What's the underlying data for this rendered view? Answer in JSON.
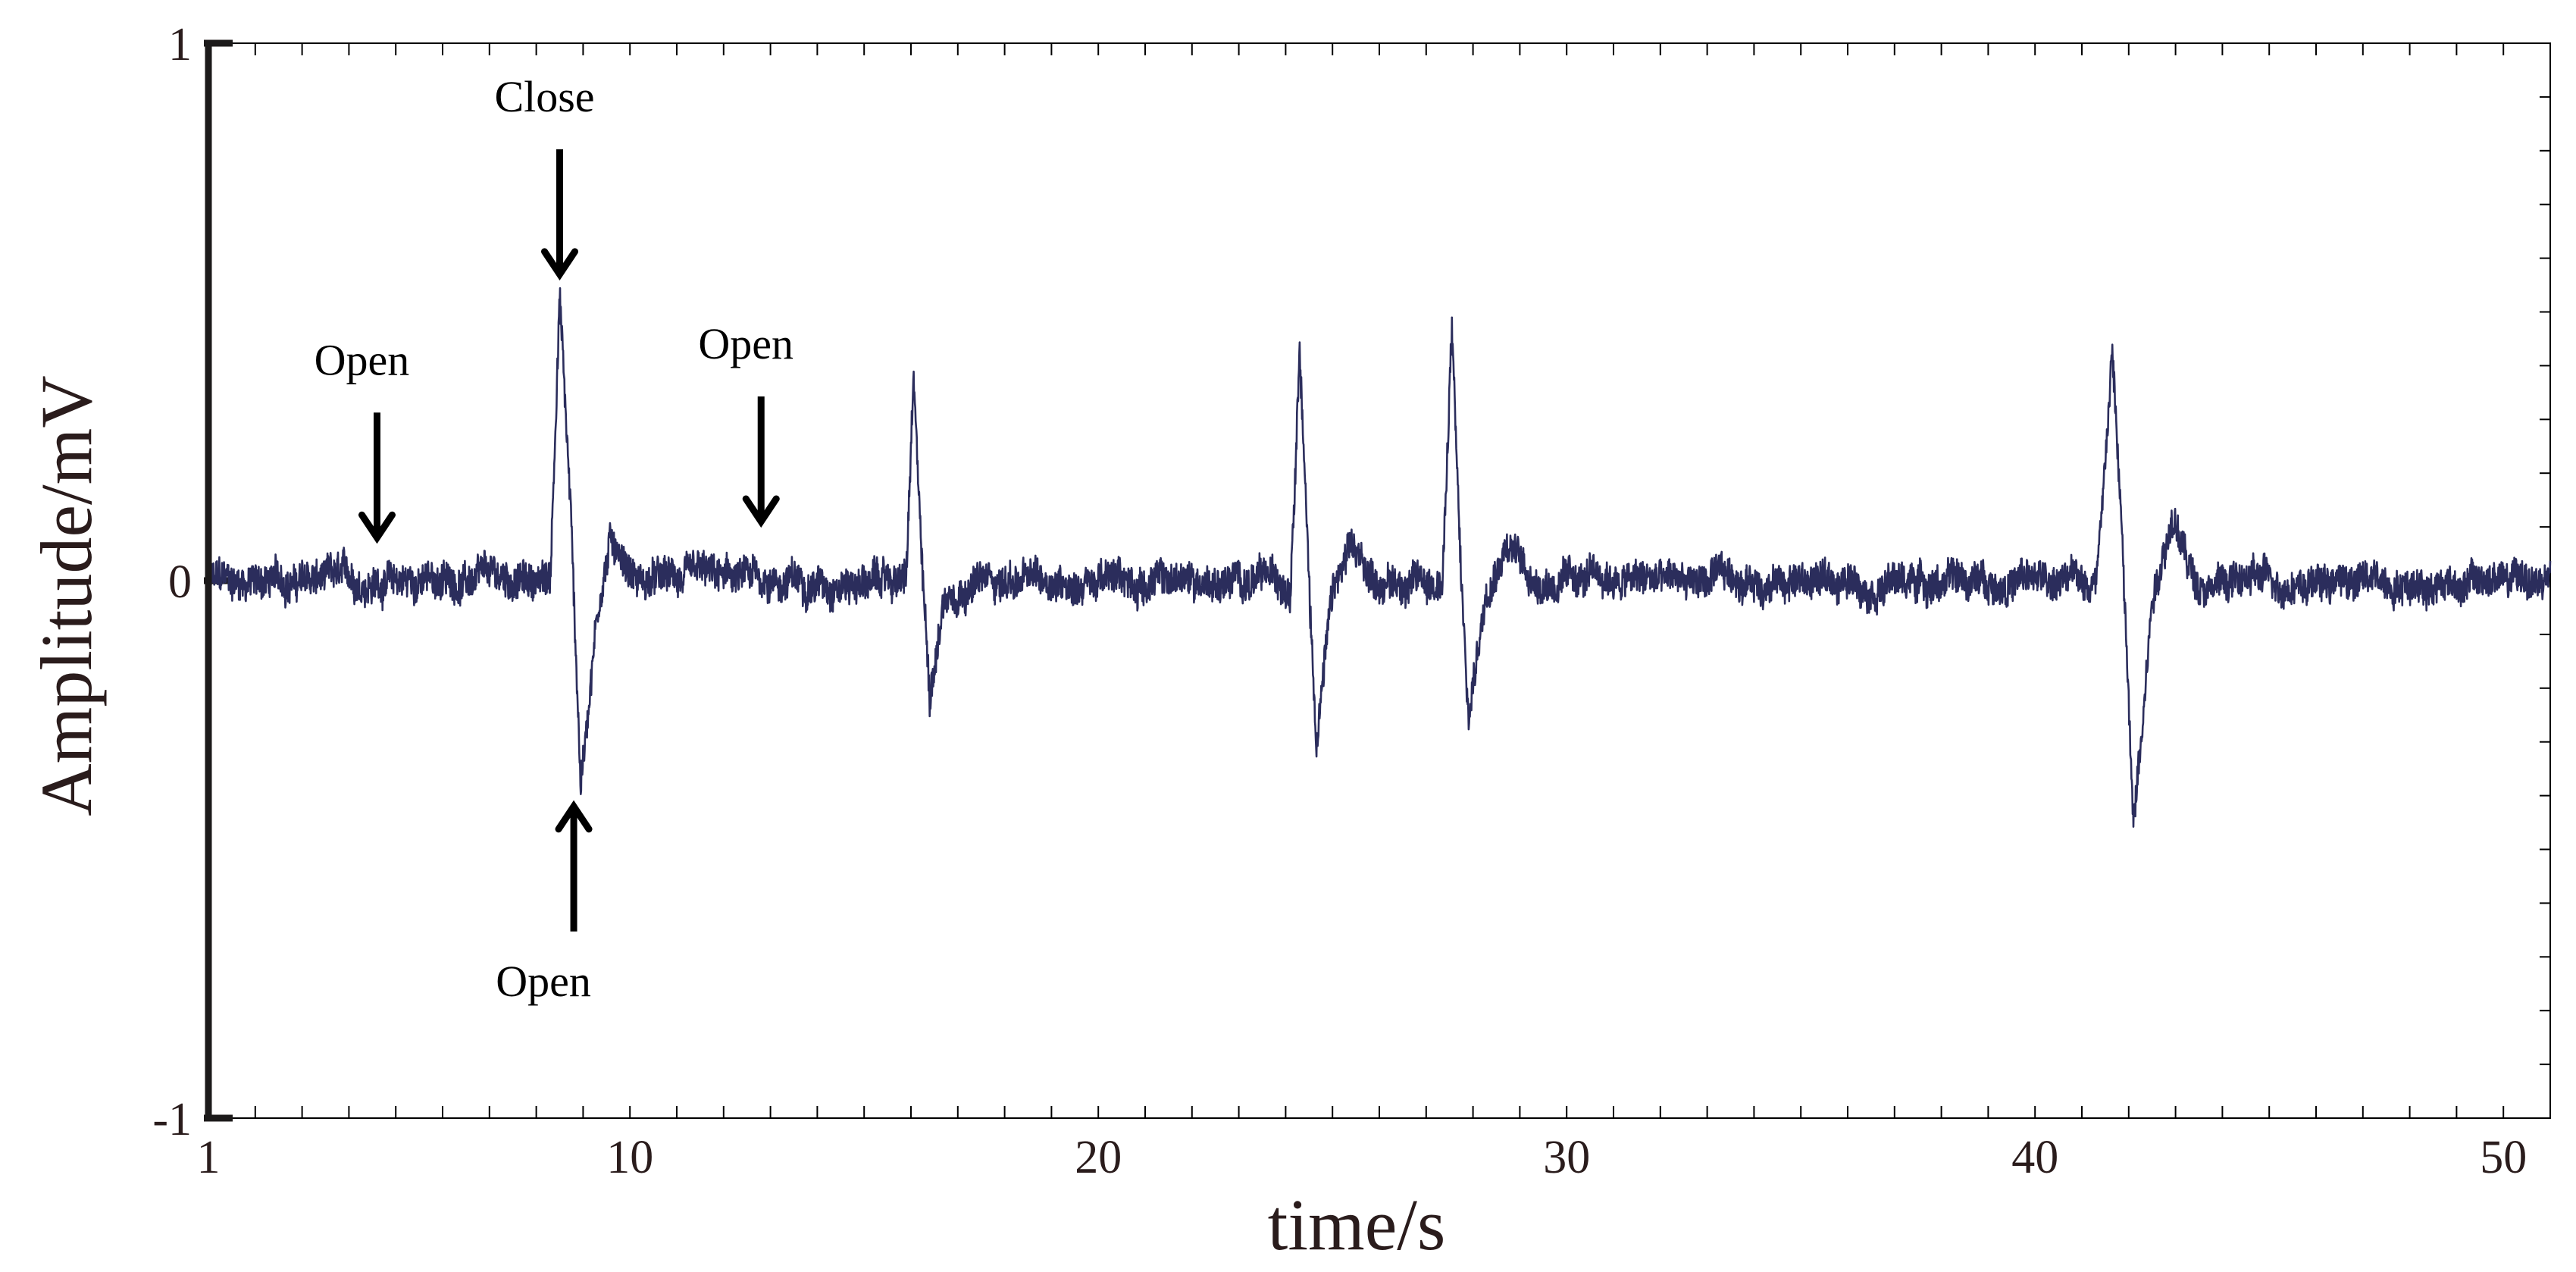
{
  "chart_data": {
    "type": "line",
    "title": "",
    "xlabel": "time/s",
    "ylabel": "Amplitude/mV",
    "xlim": [
      1,
      51
    ],
    "ylim": [
      -1,
      1
    ],
    "x_ticks": [
      1,
      10,
      20,
      30,
      40,
      50
    ],
    "x_tick_labels": [
      "1",
      "10",
      "20",
      "30",
      "40",
      "50"
    ],
    "y_ticks": [
      -1,
      0,
      1
    ],
    "y_tick_labels": [
      "-1",
      "0",
      "1"
    ],
    "grid": false,
    "legend": "none",
    "series": [
      {
        "color": "#2b2d5c",
        "baseline_noise_amplitude": 0.03,
        "points": [
          {
            "x": 1,
            "y": 0.0
          },
          {
            "x": 8.3,
            "y": 0.0
          },
          {
            "x": 8.5,
            "y": 0.54
          },
          {
            "x": 8.75,
            "y": 0.1
          },
          {
            "x": 8.95,
            "y": -0.38
          },
          {
            "x": 9.3,
            "y": -0.05
          },
          {
            "x": 9.6,
            "y": 0.08
          },
          {
            "x": 10.2,
            "y": 0.0
          },
          {
            "x": 15.9,
            "y": 0.0
          },
          {
            "x": 16.05,
            "y": 0.36
          },
          {
            "x": 16.25,
            "y": 0.0
          },
          {
            "x": 16.4,
            "y": -0.21
          },
          {
            "x": 16.7,
            "y": -0.03
          },
          {
            "x": 17.2,
            "y": 0.0
          },
          {
            "x": 24.1,
            "y": 0.0
          },
          {
            "x": 24.3,
            "y": 0.45
          },
          {
            "x": 24.5,
            "y": 0.0
          },
          {
            "x": 24.65,
            "y": -0.29
          },
          {
            "x": 25.0,
            "y": -0.02
          },
          {
            "x": 25.4,
            "y": 0.05
          },
          {
            "x": 25.9,
            "y": 0.0
          },
          {
            "x": 27.35,
            "y": 0.0
          },
          {
            "x": 27.55,
            "y": 0.46
          },
          {
            "x": 27.75,
            "y": 0.0
          },
          {
            "x": 27.9,
            "y": -0.26
          },
          {
            "x": 28.3,
            "y": 0.0
          },
          {
            "x": 28.7,
            "y": 0.08
          },
          {
            "x": 29.3,
            "y": 0.0
          },
          {
            "x": 41.3,
            "y": 0.0
          },
          {
            "x": 41.65,
            "y": 0.43
          },
          {
            "x": 41.85,
            "y": 0.1
          },
          {
            "x": 42.1,
            "y": -0.46
          },
          {
            "x": 42.5,
            "y": -0.02
          },
          {
            "x": 42.9,
            "y": 0.12
          },
          {
            "x": 43.4,
            "y": 0.0
          },
          {
            "x": 51,
            "y": 0.0
          }
        ]
      }
    ],
    "annotations": [
      {
        "text": "Close",
        "arrow_direction": "down",
        "x": 8.5,
        "y": 0.57
      },
      {
        "text": "Open",
        "arrow_direction": "up",
        "x": 8.8,
        "y": -0.42
      },
      {
        "text": "Open",
        "arrow_direction": "down",
        "x": 4.6,
        "y": 0.08
      },
      {
        "text": "Open",
        "arrow_direction": "down",
        "x": 12.8,
        "y": 0.11
      }
    ]
  }
}
